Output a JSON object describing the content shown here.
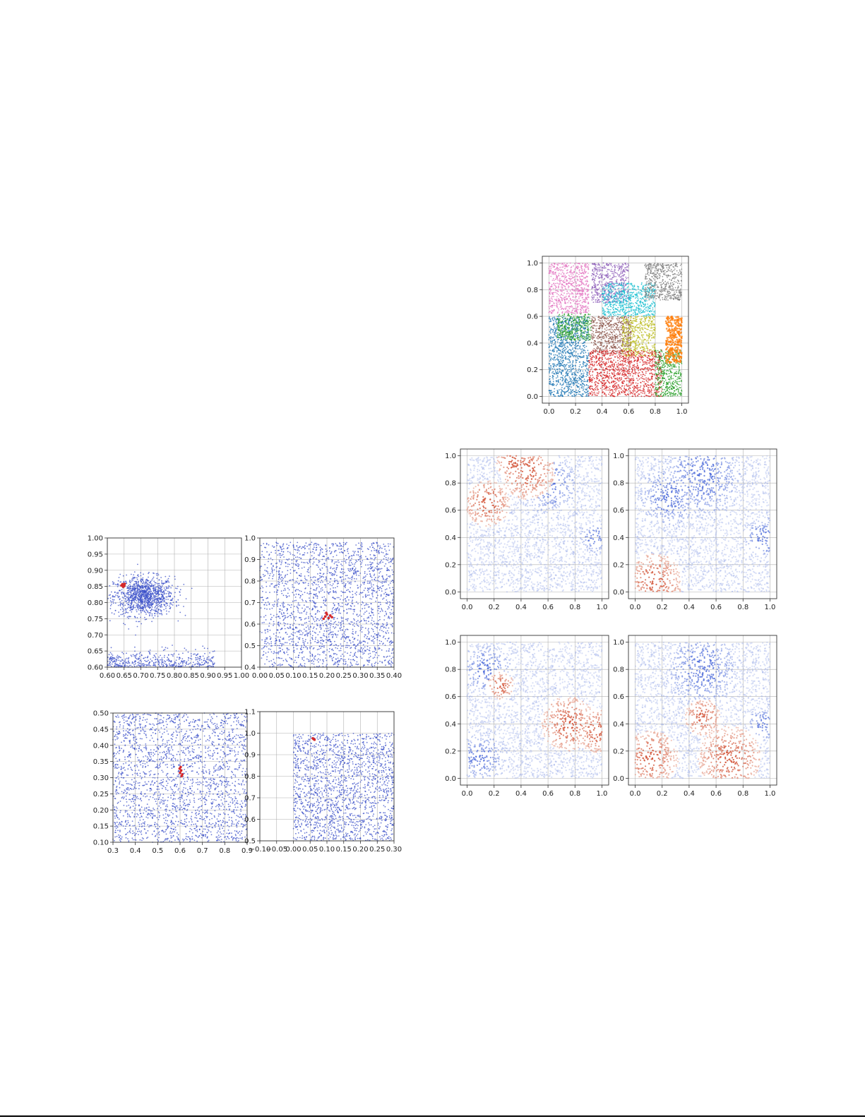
{
  "colors": {
    "cluster_palette": [
      "#1f77b4",
      "#ff7f0e",
      "#2ca02c",
      "#d62728",
      "#9467bd",
      "#8c564b",
      "#e377c2",
      "#7f7f7f",
      "#bcbd22",
      "#17becf"
    ],
    "dot_blue": "#3a4fc8",
    "dot_red": "#d62728",
    "cool": "#3b5cd6",
    "warm": "#d3573c"
  },
  "chart_data": [
    {
      "id": "zoom-a",
      "type": "scatter",
      "title": "",
      "xlabel": "",
      "ylabel": "",
      "xlim": [
        0.6,
        1.0
      ],
      "ylim": [
        0.6,
        1.0
      ],
      "xticks": [
        "0.60",
        "0.65",
        "0.70",
        "0.75",
        "0.80",
        "0.85",
        "0.90",
        "0.95",
        "1.00"
      ],
      "yticks": [
        "0.60",
        "0.65",
        "0.70",
        "0.75",
        "0.80",
        "0.85",
        "0.90",
        "0.95",
        "1.00"
      ],
      "grid": true,
      "series": [
        {
          "color": "blue",
          "density": "dense cluster centered near (0.72, 0.82); sparse points along lower edge y 0.60-0.64"
        },
        {
          "color": "red",
          "x": [
            0.642,
            0.645,
            0.648,
            0.65,
            0.652,
            0.647
          ],
          "y": [
            0.853,
            0.857,
            0.855,
            0.851,
            0.858,
            0.849
          ]
        }
      ]
    },
    {
      "id": "zoom-b",
      "type": "scatter",
      "title": "",
      "xlabel": "",
      "ylabel": "",
      "xlim": [
        0.0,
        0.4
      ],
      "ylim": [
        0.4,
        1.0
      ],
      "xticks": [
        "0.00",
        "0.05",
        "0.10",
        "0.15",
        "0.20",
        "0.25",
        "0.30",
        "0.35",
        "0.40"
      ],
      "yticks": [
        "0.4",
        "0.5",
        "0.6",
        "0.7",
        "0.8",
        "0.9",
        "1.0"
      ],
      "grid": true,
      "series": [
        {
          "color": "blue",
          "density": "dense field x 0.05-0.40, sparse x 0.00-0.05"
        },
        {
          "color": "red",
          "x": [
            0.195,
            0.2,
            0.205,
            0.21,
            0.198,
            0.215,
            0.19
          ],
          "y": [
            0.635,
            0.645,
            0.628,
            0.64,
            0.652,
            0.632,
            0.625
          ]
        }
      ]
    },
    {
      "id": "zoom-c",
      "type": "scatter",
      "title": "",
      "xlabel": "",
      "ylabel": "",
      "xlim": [
        0.3,
        0.9
      ],
      "ylim": [
        0.1,
        0.5
      ],
      "xticks": [
        "0.3",
        "0.4",
        "0.5",
        "0.6",
        "0.7",
        "0.8",
        "0.9"
      ],
      "yticks": [
        "0.10",
        "0.15",
        "0.20",
        "0.25",
        "0.30",
        "0.35",
        "0.40",
        "0.45",
        "0.50"
      ],
      "grid": true,
      "series": [
        {
          "color": "blue",
          "density": "dense field covering full range"
        },
        {
          "color": "red",
          "x": [
            0.6,
            0.605,
            0.61,
            0.598,
            0.607,
            0.603
          ],
          "y": [
            0.315,
            0.322,
            0.31,
            0.328,
            0.305,
            0.333
          ]
        }
      ]
    },
    {
      "id": "zoom-d",
      "type": "scatter",
      "title": "",
      "xlabel": "",
      "ylabel": "",
      "xlim": [
        -0.1,
        0.3
      ],
      "ylim": [
        0.5,
        1.1
      ],
      "xticks": [
        "−0.10",
        "−0.05",
        "0.00",
        "0.05",
        "0.10",
        "0.15",
        "0.20",
        "0.25",
        "0.30"
      ],
      "yticks": [
        "0.5",
        "0.6",
        "0.7",
        "0.8",
        "0.9",
        "1.0",
        "1.1"
      ],
      "grid": true,
      "series": [
        {
          "color": "blue",
          "density": "dense field x 0.00-0.30, y 0.5-1.0; empty x < 0"
        },
        {
          "color": "red",
          "x": [
            0.06,
            0.063,
            0.058
          ],
          "y": [
            0.973,
            0.97,
            0.976
          ]
        }
      ]
    },
    {
      "id": "clusters",
      "type": "scatter",
      "title": "",
      "xlabel": "",
      "ylabel": "",
      "xlim": [
        -0.05,
        1.05
      ],
      "ylim": [
        -0.05,
        1.05
      ],
      "xticks": [
        "0.0",
        "0.2",
        "0.4",
        "0.6",
        "0.8",
        "1.0"
      ],
      "yticks": [
        "0.0",
        "0.2",
        "0.4",
        "0.6",
        "0.8",
        "1.0"
      ],
      "grid": true,
      "series": [
        {
          "color": "#1f77b4",
          "region": [
            0.0,
            0.0,
            0.3,
            0.6
          ]
        },
        {
          "color": "#e377c2",
          "region": [
            0.0,
            0.62,
            0.3,
            1.0
          ]
        },
        {
          "color": "#9467bd",
          "region": [
            0.32,
            0.7,
            0.6,
            1.0
          ]
        },
        {
          "color": "#17becf",
          "region": [
            0.4,
            0.6,
            0.8,
            0.85
          ]
        },
        {
          "color": "#7f7f7f",
          "region": [
            0.72,
            0.72,
            1.0,
            1.0
          ]
        },
        {
          "color": "#2ca02c",
          "region": [
            0.06,
            0.42,
            0.32,
            0.62
          ]
        },
        {
          "color": "#8c564b",
          "region": [
            0.32,
            0.32,
            0.62,
            0.6
          ]
        },
        {
          "color": "#bcbd22",
          "region": [
            0.55,
            0.3,
            0.8,
            0.6
          ]
        },
        {
          "color": "#d62728",
          "region": [
            0.3,
            0.0,
            0.85,
            0.35
          ]
        },
        {
          "color": "#2ca02c",
          "region": [
            0.8,
            0.0,
            1.0,
            0.35
          ]
        },
        {
          "color": "#ff7f0e",
          "region": [
            0.88,
            0.25,
            1.0,
            0.6
          ]
        }
      ]
    },
    {
      "id": "heat-1",
      "type": "heatmap",
      "title": "",
      "xlabel": "",
      "ylabel": "",
      "xlim": [
        -0.05,
        1.05
      ],
      "ylim": [
        -0.05,
        1.05
      ],
      "xticks": [
        "0.0",
        "0.2",
        "0.4",
        "0.6",
        "0.8",
        "1.0"
      ],
      "yticks": [
        "0.0",
        "0.2",
        "0.4",
        "0.6",
        "0.8",
        "1.0"
      ],
      "grid": true,
      "warm_spots": [
        [
          0.45,
          0.88,
          0.12
        ],
        [
          0.15,
          0.65,
          0.1
        ],
        [
          0.35,
          0.95,
          0.08
        ]
      ],
      "cool_spots": [
        [
          0.95,
          0.4,
          0.08
        ],
        [
          0.6,
          0.8,
          0.15
        ]
      ]
    },
    {
      "id": "heat-2",
      "type": "heatmap",
      "title": "",
      "xlabel": "",
      "ylabel": "",
      "xlim": [
        -0.05,
        1.05
      ],
      "ylim": [
        -0.05,
        1.05
      ],
      "xticks": [
        "0.0",
        "0.2",
        "0.4",
        "0.6",
        "0.8",
        "1.0"
      ],
      "yticks": [
        "0.0",
        "0.2",
        "0.4",
        "0.6",
        "0.8",
        "1.0"
      ],
      "grid": true,
      "warm_spots": [
        [
          0.15,
          0.08,
          0.12
        ]
      ],
      "cool_spots": [
        [
          0.95,
          0.4,
          0.1
        ],
        [
          0.5,
          0.85,
          0.2
        ],
        [
          0.25,
          0.7,
          0.15
        ]
      ]
    },
    {
      "id": "heat-3",
      "type": "heatmap",
      "title": "",
      "xlabel": "",
      "ylabel": "",
      "xlim": [
        -0.05,
        1.05
      ],
      "ylim": [
        -0.05,
        1.05
      ],
      "xticks": [
        "0.0",
        "0.2",
        "0.4",
        "0.6",
        "0.8",
        "1.0"
      ],
      "yticks": [
        "0.0",
        "0.2",
        "0.4",
        "0.6",
        "0.8",
        "1.0"
      ],
      "grid": true,
      "warm_spots": [
        [
          0.97,
          0.35,
          0.1
        ],
        [
          0.75,
          0.4,
          0.12
        ],
        [
          0.25,
          0.68,
          0.06
        ]
      ],
      "cool_spots": [
        [
          0.15,
          0.8,
          0.12
        ],
        [
          0.1,
          0.15,
          0.12
        ]
      ]
    },
    {
      "id": "heat-4",
      "type": "heatmap",
      "title": "",
      "xlabel": "",
      "ylabel": "",
      "xlim": [
        -0.05,
        1.05
      ],
      "ylim": [
        -0.05,
        1.05
      ],
      "xticks": [
        "0.0",
        "0.2",
        "0.4",
        "0.6",
        "0.8",
        "1.0"
      ],
      "yticks": [
        "0.0",
        "0.2",
        "0.4",
        "0.6",
        "0.8",
        "1.0"
      ],
      "grid": true,
      "warm_spots": [
        [
          0.12,
          0.15,
          0.12
        ],
        [
          0.7,
          0.15,
          0.14
        ],
        [
          0.5,
          0.45,
          0.08
        ]
      ],
      "cool_spots": [
        [
          0.95,
          0.4,
          0.08
        ],
        [
          0.5,
          0.8,
          0.18
        ]
      ]
    }
  ]
}
